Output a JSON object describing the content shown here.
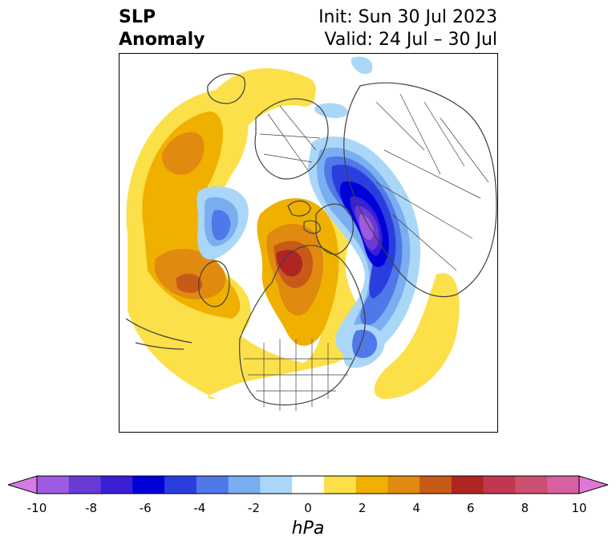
{
  "title": {
    "left_line1": "SLP",
    "left_line2": "Anomaly",
    "right_line1": "Init: Sun 30 Jul 2023",
    "right_line2": "Valid: 24 Jul – 30 Jul"
  },
  "colorbar": {
    "unit": "hPa",
    "ticks": [
      "-10",
      "-8",
      "-6",
      "-4",
      "-2",
      "0",
      "2",
      "4",
      "6",
      "8",
      "10"
    ],
    "colors": [
      "#d77be6",
      "#9e5ae0",
      "#6a3ad6",
      "#3a1fd6",
      "#0000d8",
      "#2a3ee0",
      "#4f78e8",
      "#7aaef0",
      "#aad6f8",
      "#ffffff",
      "#fbe04a",
      "#f0b000",
      "#e08a10",
      "#c85a18",
      "#b02424",
      "#c03850",
      "#cc5070",
      "#d760a0",
      "#e276d8"
    ],
    "extend": "both"
  },
  "colors": {
    "land_outline": "#404040",
    "frame": "#000000"
  }
}
